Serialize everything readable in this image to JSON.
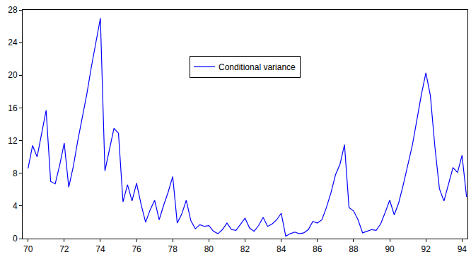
{
  "chart_data": {
    "type": "line",
    "x": [
      70,
      70.25,
      70.5,
      70.75,
      71,
      71.25,
      71.5,
      71.75,
      72,
      72.25,
      72.5,
      72.75,
      73,
      73.25,
      73.5,
      73.75,
      74,
      74.25,
      74.5,
      74.75,
      75,
      75.25,
      75.5,
      75.75,
      76,
      76.25,
      76.5,
      76.75,
      77,
      77.25,
      77.5,
      77.75,
      78,
      78.25,
      78.5,
      78.75,
      79,
      79.25,
      79.5,
      79.75,
      80,
      80.25,
      80.5,
      80.75,
      81,
      81.25,
      81.5,
      81.75,
      82,
      82.25,
      82.5,
      82.75,
      83,
      83.25,
      83.5,
      83.75,
      84,
      84.25,
      84.5,
      84.75,
      85,
      85.25,
      85.5,
      85.75,
      86,
      86.25,
      86.5,
      86.75,
      87,
      87.25,
      87.5,
      87.75,
      88,
      88.25,
      88.5,
      88.75,
      89,
      89.25,
      89.5,
      89.75,
      90,
      90.25,
      90.5,
      90.75,
      91,
      91.25,
      91.5,
      91.75,
      92,
      92.25,
      92.5,
      92.75,
      93,
      93.25,
      93.5,
      93.75,
      94,
      94.25
    ],
    "series": [
      {
        "name": "Conditional variance",
        "color": "#0000ff",
        "values": [
          8.6,
          11.4,
          10,
          12.8,
          15.7,
          7,
          6.7,
          9,
          11.7,
          6.3,
          8.8,
          12,
          14.8,
          17.7,
          21,
          24,
          27,
          8.3,
          10.8,
          13.5,
          12.9,
          4.5,
          6.6,
          4.6,
          6.8,
          4.2,
          2.0,
          3.5,
          4.7,
          2.3,
          4.1,
          5.7,
          7.6,
          1.9,
          3.0,
          4.7,
          2.2,
          1.2,
          1.7,
          1.5,
          1.6,
          0.9,
          0.6,
          1.1,
          1.9,
          1.1,
          1.0,
          1.8,
          2.5,
          1.3,
          0.9,
          1.6,
          2.6,
          1.5,
          1.8,
          2.3,
          3.1,
          0.3,
          0.6,
          0.8,
          0.6,
          0.7,
          1.1,
          2.1,
          1.9,
          2.3,
          3.8,
          5.6,
          7.8,
          9.1,
          11.5,
          3.8,
          3.4,
          2.3,
          0.7,
          0.9,
          1.1,
          1.0,
          1.8,
          3.2,
          4.7,
          2.9,
          4.4,
          6.6,
          8.9,
          11.4,
          14.5,
          17.6,
          20.3,
          17.5,
          11.2,
          6.1,
          4.6,
          6.6,
          8.7,
          8.1,
          10.2,
          5.1
        ]
      }
    ],
    "xlim": [
      69.7,
      94.3
    ],
    "xticks": [
      70,
      72,
      74,
      76,
      78,
      80,
      82,
      84,
      86,
      88,
      90,
      92,
      94
    ],
    "ylim": [
      0,
      28
    ],
    "yticks": [
      0,
      4,
      8,
      12,
      16,
      20,
      24,
      28
    ],
    "grid": false,
    "legend": "top"
  }
}
